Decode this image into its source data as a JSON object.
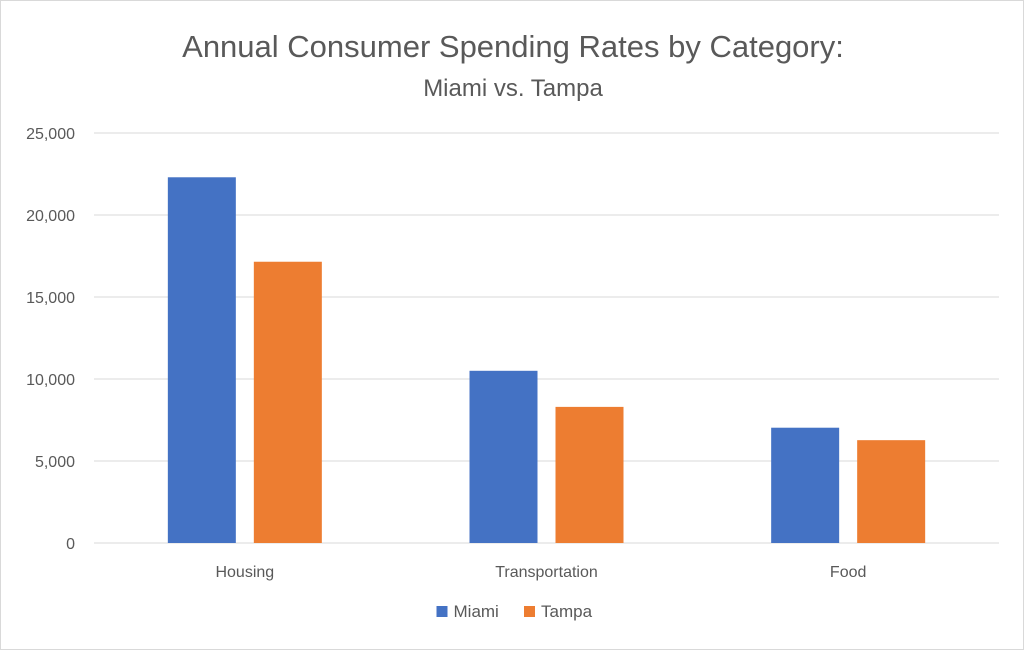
{
  "chart_data": {
    "type": "bar",
    "title": "Annual Consumer Spending Rates by Category:",
    "subtitle": "Miami vs. Tampa",
    "categories": [
      "Housing",
      "Transportation",
      "Food"
    ],
    "series": [
      {
        "name": "Miami",
        "color": "#4472c4",
        "values": [
          22300,
          10500,
          7030
        ]
      },
      {
        "name": "Tampa",
        "color": "#ed7d31",
        "values": [
          17150,
          8300,
          6270
        ]
      }
    ],
    "ylim": [
      0,
      25000
    ],
    "yticks": [
      0,
      5000,
      10000,
      15000,
      20000,
      25000
    ],
    "ytick_labels": [
      "0",
      "5,000",
      "10,000",
      "15,000",
      "20,000",
      "25,000"
    ],
    "xlabel": "",
    "ylabel": "",
    "grid": true,
    "legend_position": "bottom"
  },
  "colors": {
    "gridline": "#d9d9d9",
    "text": "#595959"
  }
}
